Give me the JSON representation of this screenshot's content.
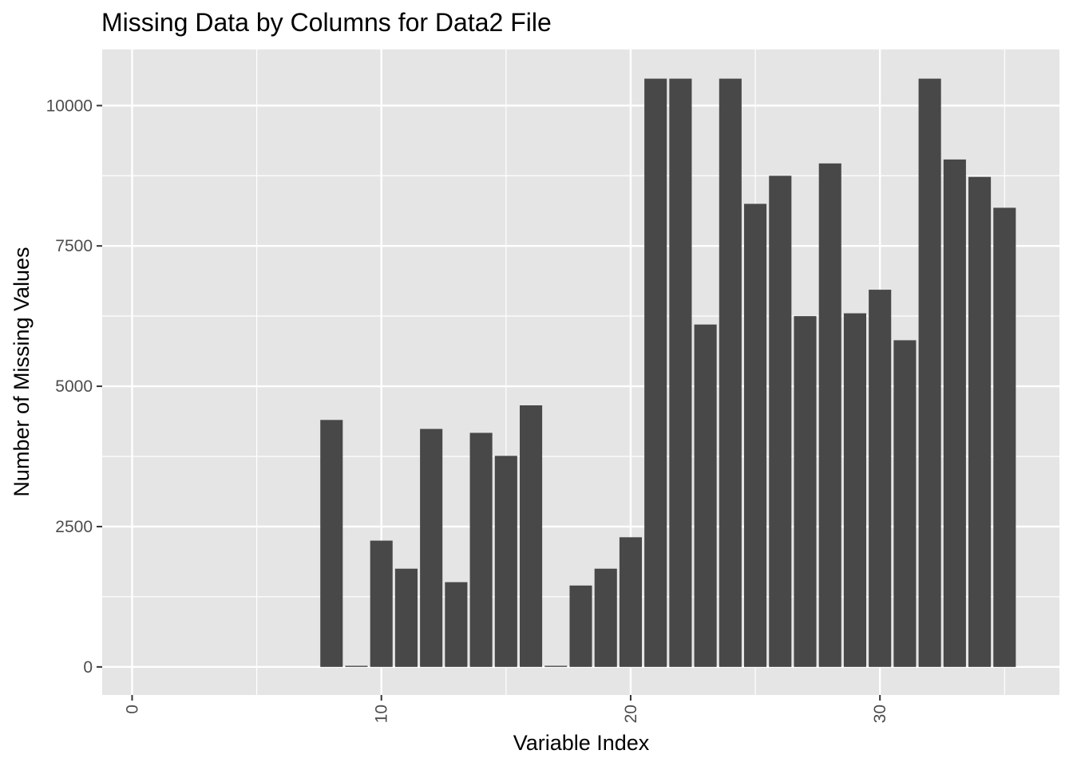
{
  "chart_data": {
    "type": "bar",
    "title": "Missing Data by Columns for Data2 File",
    "xlabel": "Variable Index",
    "ylabel": "Number of Missing Values",
    "xlim": [
      -1.2,
      37.2
    ],
    "ylim": [
      -500,
      11000
    ],
    "x_major_ticks": [
      0,
      10,
      20,
      30
    ],
    "x_minor_ticks": [
      5,
      15,
      25,
      35
    ],
    "y_major_ticks": [
      0,
      2500,
      5000,
      7500,
      10000
    ],
    "y_minor_ticks": [
      1250,
      3750,
      6250,
      8750
    ],
    "tick_label_rotation_x": -90,
    "grid": true,
    "panel_background": "#e5e5e5",
    "grid_color": "#ffffff",
    "bar_color": "#484848",
    "x": [
      1,
      2,
      3,
      4,
      5,
      6,
      7,
      8,
      9,
      10,
      11,
      12,
      13,
      14,
      15,
      16,
      17,
      18,
      19,
      20,
      21,
      22,
      23,
      24,
      25,
      26,
      27,
      28,
      29,
      30,
      31,
      32,
      33,
      34,
      35
    ],
    "values": [
      0,
      0,
      0,
      0,
      0,
      0,
      0,
      4400,
      20,
      2250,
      1750,
      4240,
      1510,
      4170,
      3760,
      4660,
      20,
      1450,
      1750,
      2310,
      10480,
      10480,
      6100,
      10480,
      8250,
      8750,
      6250,
      8970,
      6300,
      6720,
      5820,
      10480,
      9040,
      8730,
      8180
    ]
  }
}
